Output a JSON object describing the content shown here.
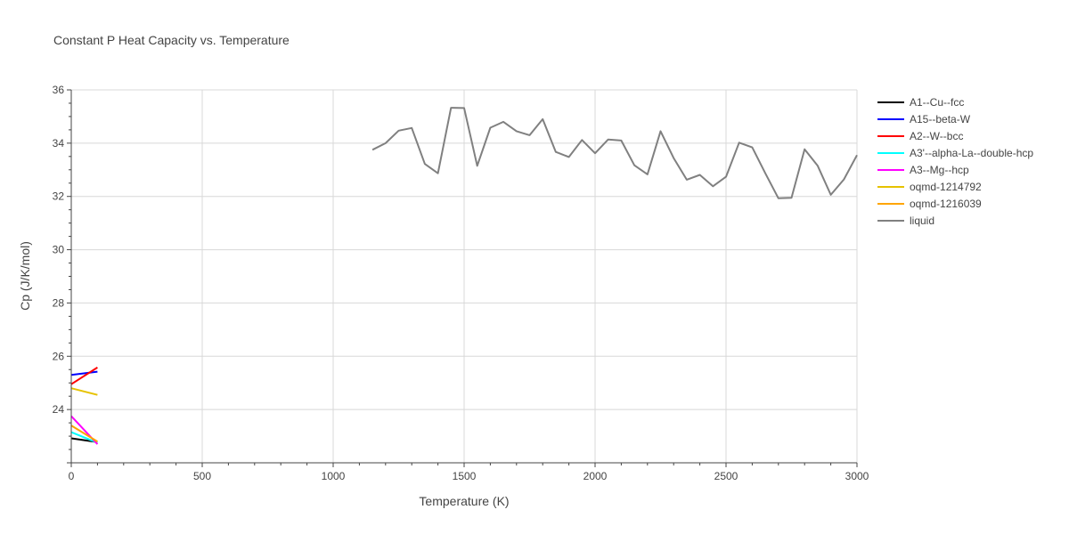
{
  "chart_data": {
    "type": "line",
    "title": "Constant P Heat Capacity vs. Temperature",
    "xlabel": "Temperature (K)",
    "ylabel": "Cp (J/K/mol)",
    "xlim": [
      0,
      3000
    ],
    "ylim": [
      22.0,
      36.0
    ],
    "xticks": [
      0,
      500,
      1000,
      1500,
      2000,
      2500,
      3000
    ],
    "yticks": [
      24,
      26,
      28,
      30,
      32,
      34,
      36
    ],
    "grid": true,
    "legend_position": "right",
    "series": [
      {
        "name": "A1--Cu--fcc",
        "color": "#000000",
        "x": [
          0,
          100
        ],
        "y": [
          22.92,
          22.78
        ]
      },
      {
        "name": "A15--beta-W",
        "color": "#0000ff",
        "x": [
          0,
          100
        ],
        "y": [
          25.3,
          25.42
        ]
      },
      {
        "name": "A2--W--bcc",
        "color": "#ff0000",
        "x": [
          0,
          100
        ],
        "y": [
          24.95,
          25.58
        ]
      },
      {
        "name": "A3'--alpha-La--double-hcp",
        "color": "#00ffff",
        "x": [
          0,
          100
        ],
        "y": [
          23.15,
          22.75
        ]
      },
      {
        "name": "A3--Mg--hcp",
        "color": "#ff00ff",
        "x": [
          0,
          100
        ],
        "y": [
          23.75,
          22.7
        ]
      },
      {
        "name": "oqmd-1214792",
        "color": "#e6c200",
        "x": [
          0,
          100
        ],
        "y": [
          24.8,
          24.55
        ]
      },
      {
        "name": "oqmd-1216039",
        "color": "#ffa500",
        "x": [
          0,
          100
        ],
        "y": [
          23.4,
          22.8
        ]
      },
      {
        "name": "liquid",
        "color": "#808080",
        "x": [
          1150,
          1200,
          1250,
          1300,
          1350,
          1400,
          1450,
          1500,
          1550,
          1600,
          1650,
          1700,
          1750,
          1800,
          1850,
          1900,
          1950,
          2000,
          2050,
          2100,
          2150,
          2200,
          2250,
          2300,
          2350,
          2400,
          2450,
          2500,
          2550,
          2600,
          2650,
          2700,
          2750,
          2800,
          2850,
          2900,
          2950,
          3000
        ],
        "y": [
          33.75,
          34.0,
          34.47,
          34.57,
          33.22,
          32.87,
          35.33,
          35.32,
          33.15,
          34.58,
          34.8,
          34.45,
          34.3,
          34.9,
          33.67,
          33.48,
          34.12,
          33.62,
          34.14,
          34.1,
          33.17,
          32.83,
          34.45,
          33.44,
          32.63,
          32.81,
          32.38,
          32.74,
          34.02,
          33.84,
          32.87,
          31.93,
          31.95,
          33.77,
          33.15,
          32.06,
          32.64,
          33.55
        ]
      }
    ]
  }
}
